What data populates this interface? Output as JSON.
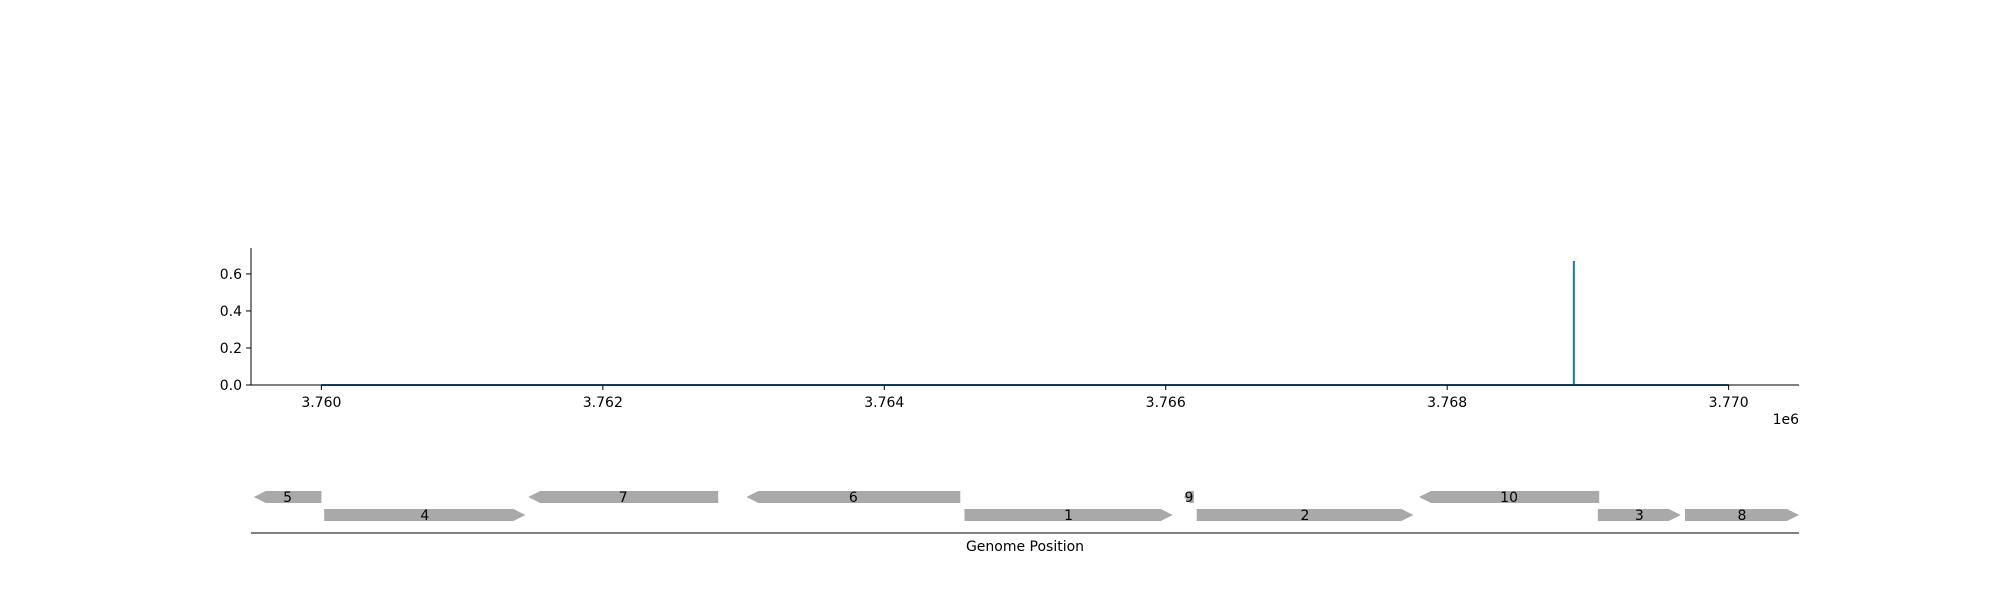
{
  "chart_data": {
    "type": "line",
    "title": "",
    "xlabel": "",
    "ylabel": "",
    "x_offset_label": "1e6",
    "xlim": [
      3759500,
      3770500
    ],
    "ylim": [
      0,
      0.74
    ],
    "x_ticks": [
      3760000,
      3762000,
      3764000,
      3766000,
      3768000,
      3770000
    ],
    "x_tick_labels": [
      "3.760",
      "3.762",
      "3.764",
      "3.766",
      "3.768",
      "3.770"
    ],
    "y_ticks": [
      0.0,
      0.2,
      0.4,
      0.6
    ],
    "y_tick_labels": [
      "0.0",
      "0.2",
      "0.4",
      "0.6"
    ],
    "grid": false,
    "line_color": "#1f77b4",
    "series": [
      {
        "x": [
          3760000,
          3768900,
          3768900,
          3768900,
          3770000
        ],
        "values": [
          0,
          0,
          0.67,
          0,
          0
        ]
      }
    ]
  },
  "gene_track": {
    "xlabel": "Genome Position",
    "gene_color": "#a9a9a9",
    "genes": [
      {
        "label": "5",
        "start": 3759520,
        "end": 3760000,
        "strand": -1,
        "row": 0
      },
      {
        "label": "4",
        "start": 3760020,
        "end": 3761450,
        "strand": 1,
        "row": 1
      },
      {
        "label": "7",
        "start": 3761470,
        "end": 3762820,
        "strand": -1,
        "row": 0
      },
      {
        "label": "6",
        "start": 3763020,
        "end": 3764540,
        "strand": -1,
        "row": 0
      },
      {
        "label": "1",
        "start": 3764570,
        "end": 3766050,
        "strand": 1,
        "row": 1
      },
      {
        "label": "9",
        "start": 3766130,
        "end": 3766200,
        "strand": -1,
        "row": 0
      },
      {
        "label": "2",
        "start": 3766220,
        "end": 3767760,
        "strand": 1,
        "row": 1
      },
      {
        "label": "10",
        "start": 3767800,
        "end": 3769080,
        "strand": -1,
        "row": 0
      },
      {
        "label": "3",
        "start": 3769070,
        "end": 3769660,
        "strand": 1,
        "row": 1
      },
      {
        "label": "8",
        "start": 3769690,
        "end": 3770500,
        "strand": 1,
        "row": 1
      }
    ]
  }
}
